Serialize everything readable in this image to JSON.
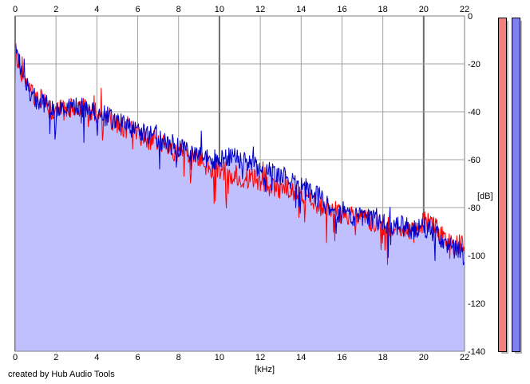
{
  "credit": "created by Hub Audio Tools",
  "chart_data": {
    "type": "line",
    "xlabel": "[kHz]",
    "ylabel": "[dB]",
    "xlim": [
      0,
      22
    ],
    "ylim": [
      -140,
      0
    ],
    "x_ticks": [
      0,
      2,
      4,
      6,
      8,
      10,
      12,
      14,
      16,
      18,
      20,
      22
    ],
    "y_ticks": [
      0,
      -20,
      -40,
      -60,
      -80,
      -100,
      -120,
      -140
    ],
    "grid": true,
    "fill_color": "#c0c0ff",
    "series": [
      {
        "color": "#ff0000",
        "x": [
          0.0,
          0.2,
          0.5,
          0.8,
          1.0,
          1.3,
          1.6,
          2.0,
          2.5,
          3.0,
          3.5,
          4.0,
          4.5,
          5.0,
          5.5,
          6.0,
          6.5,
          7.0,
          7.5,
          8.0,
          8.5,
          9.0,
          9.5,
          10.0,
          10.5,
          11.0,
          11.5,
          12.0,
          12.5,
          13.0,
          13.5,
          14.0,
          14.5,
          15.0,
          15.5,
          16.0,
          16.5,
          17.0,
          17.5,
          18.0,
          18.5,
          19.0,
          19.5,
          20.0,
          20.3,
          20.6,
          21.0,
          21.5,
          22.0
        ],
        "y": [
          -14,
          -20,
          -28,
          -32,
          -34,
          -35,
          -38,
          -40,
          -39,
          -38,
          -39,
          -40,
          -42,
          -45,
          -47,
          -49,
          -52,
          -53,
          -55,
          -57,
          -58,
          -60,
          -63,
          -64,
          -66,
          -67,
          -68,
          -69,
          -71,
          -72,
          -73,
          -75,
          -78,
          -80,
          -81,
          -83,
          -84,
          -85,
          -86,
          -87,
          -88,
          -89,
          -90,
          -86,
          -85,
          -89,
          -92,
          -95,
          -96
        ]
      },
      {
        "color": "#0000cc",
        "x": [
          0.0,
          0.2,
          0.5,
          0.8,
          1.0,
          1.3,
          1.6,
          2.0,
          2.5,
          3.0,
          3.5,
          4.0,
          4.5,
          5.0,
          5.5,
          6.0,
          6.5,
          7.0,
          7.5,
          8.0,
          8.5,
          9.0,
          9.5,
          10.0,
          10.5,
          11.0,
          11.5,
          12.0,
          12.5,
          13.0,
          13.5,
          14.0,
          14.5,
          15.0,
          15.5,
          16.0,
          16.5,
          17.0,
          17.5,
          18.0,
          18.5,
          19.0,
          19.5,
          20.0,
          20.3,
          20.6,
          21.0,
          21.5,
          22.0
        ],
        "y": [
          -13,
          -20,
          -28,
          -33,
          -35,
          -36,
          -37,
          -39,
          -39,
          -38,
          -39,
          -41,
          -42,
          -44,
          -46,
          -48,
          -50,
          -51,
          -53,
          -55,
          -57,
          -58,
          -60,
          -60,
          -59,
          -60,
          -62,
          -63,
          -65,
          -67,
          -68,
          -70,
          -73,
          -77,
          -80,
          -83,
          -84,
          -84,
          -85,
          -86,
          -87,
          -88,
          -89,
          -88,
          -89,
          -91,
          -94,
          -97,
          -100
        ]
      }
    ]
  },
  "meters": [
    {
      "color": "#f07f80",
      "level": 1.0
    },
    {
      "color": "#8080f0",
      "level": 1.0
    }
  ]
}
